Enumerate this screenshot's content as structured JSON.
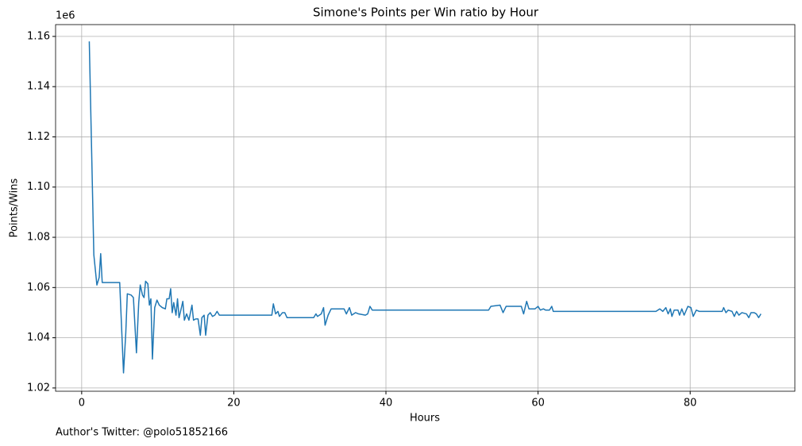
{
  "chart_data": {
    "type": "line",
    "title": "Simone's Points per Win ratio by Hour",
    "x_label": "Hours",
    "y_label": "Points/Wins",
    "y_offset_label": "1e6",
    "annotation": "Author's Twitter: @polo51852166",
    "x": [
      1.0,
      1.6,
      2.0,
      2.3,
      2.5,
      2.7,
      5.0,
      5.5,
      5.8,
      6.0,
      6.5,
      6.8,
      7.2,
      7.5,
      7.7,
      8.0,
      8.2,
      8.4,
      8.7,
      8.9,
      9.1,
      9.3,
      9.6,
      9.9,
      10.2,
      10.6,
      11.0,
      11.2,
      11.5,
      11.7,
      11.9,
      12.1,
      12.4,
      12.6,
      12.8,
      13.0,
      13.3,
      13.5,
      13.8,
      14.1,
      14.5,
      14.7,
      15.0,
      15.3,
      15.6,
      15.8,
      16.1,
      16.3,
      16.6,
      16.9,
      17.2,
      17.5,
      17.8,
      18.1,
      25.0,
      25.2,
      25.5,
      25.8,
      26.0,
      26.4,
      26.7,
      27.0,
      30.5,
      30.8,
      31.0,
      31.5,
      31.8,
      32.0,
      32.4,
      32.8,
      34.5,
      34.8,
      35.2,
      35.5,
      36.0,
      36.4,
      37.3,
      37.6,
      37.9,
      38.2,
      53.5,
      53.8,
      55.0,
      55.4,
      55.8,
      57.8,
      58.1,
      58.5,
      58.8,
      59.6,
      60.0,
      60.3,
      60.7,
      61.0,
      61.5,
      61.8,
      62.0,
      75.5,
      76.0,
      76.4,
      76.8,
      77.1,
      77.4,
      77.6,
      77.9,
      78.4,
      78.6,
      78.9,
      79.2,
      79.7,
      80.1,
      80.4,
      80.8,
      81.2,
      84.2,
      84.4,
      84.7,
      85.0,
      85.5,
      85.8,
      86.1,
      86.4,
      86.8,
      87.4,
      87.7,
      88.0,
      88.4,
      88.7,
      89.0,
      89.3
    ],
    "series": [
      {
        "name": "Points/Wins",
        "color": "#1f77b4",
        "values": [
          1158000,
          1073000,
          1061000,
          1064000,
          1073500,
          1062000,
          1062000,
          1026000,
          1042000,
          1057500,
          1057000,
          1056000,
          1034000,
          1054000,
          1061000,
          1057000,
          1056000,
          1062500,
          1061500,
          1053000,
          1055500,
          1031500,
          1052000,
          1055000,
          1053000,
          1052000,
          1051500,
          1055500,
          1055500,
          1059500,
          1050000,
          1054000,
          1049000,
          1055500,
          1048000,
          1050500,
          1054500,
          1047000,
          1049500,
          1047000,
          1053000,
          1047000,
          1047500,
          1047500,
          1041000,
          1048000,
          1049000,
          1041000,
          1049000,
          1050000,
          1048500,
          1049000,
          1050500,
          1049000,
          1049000,
          1053500,
          1049500,
          1050500,
          1048500,
          1050000,
          1050000,
          1048000,
          1048000,
          1049500,
          1048500,
          1049500,
          1052000,
          1045000,
          1049000,
          1051500,
          1051500,
          1049500,
          1052000,
          1049000,
          1050000,
          1049500,
          1049000,
          1049500,
          1052500,
          1051000,
          1051000,
          1052500,
          1053000,
          1050000,
          1052500,
          1052500,
          1049500,
          1054500,
          1051500,
          1051500,
          1052500,
          1051000,
          1051500,
          1051000,
          1051000,
          1052500,
          1050500,
          1050500,
          1051500,
          1050500,
          1052000,
          1049500,
          1051500,
          1048500,
          1051000,
          1051000,
          1049000,
          1051500,
          1049000,
          1052500,
          1052000,
          1048500,
          1051000,
          1050500,
          1050500,
          1052000,
          1050000,
          1051000,
          1050500,
          1048500,
          1050500,
          1049000,
          1050000,
          1049500,
          1048000,
          1050000,
          1050000,
          1049500,
          1048000,
          1049500
        ]
      }
    ],
    "xlim": [
      -3.43,
      93.76
    ],
    "xticks": [
      0,
      20,
      40,
      60,
      80
    ],
    "ylim": [
      1018700,
      1164700
    ],
    "yticks": [
      {
        "value": 1020000,
        "label": "1.02"
      },
      {
        "value": 1040000,
        "label": "1.04"
      },
      {
        "value": 1060000,
        "label": "1.06"
      },
      {
        "value": 1080000,
        "label": "1.08"
      },
      {
        "value": 1100000,
        "label": "1.10"
      },
      {
        "value": 1120000,
        "label": "1.12"
      },
      {
        "value": 1140000,
        "label": "1.14"
      },
      {
        "value": 1160000,
        "label": "1.16"
      }
    ],
    "grid": true
  }
}
